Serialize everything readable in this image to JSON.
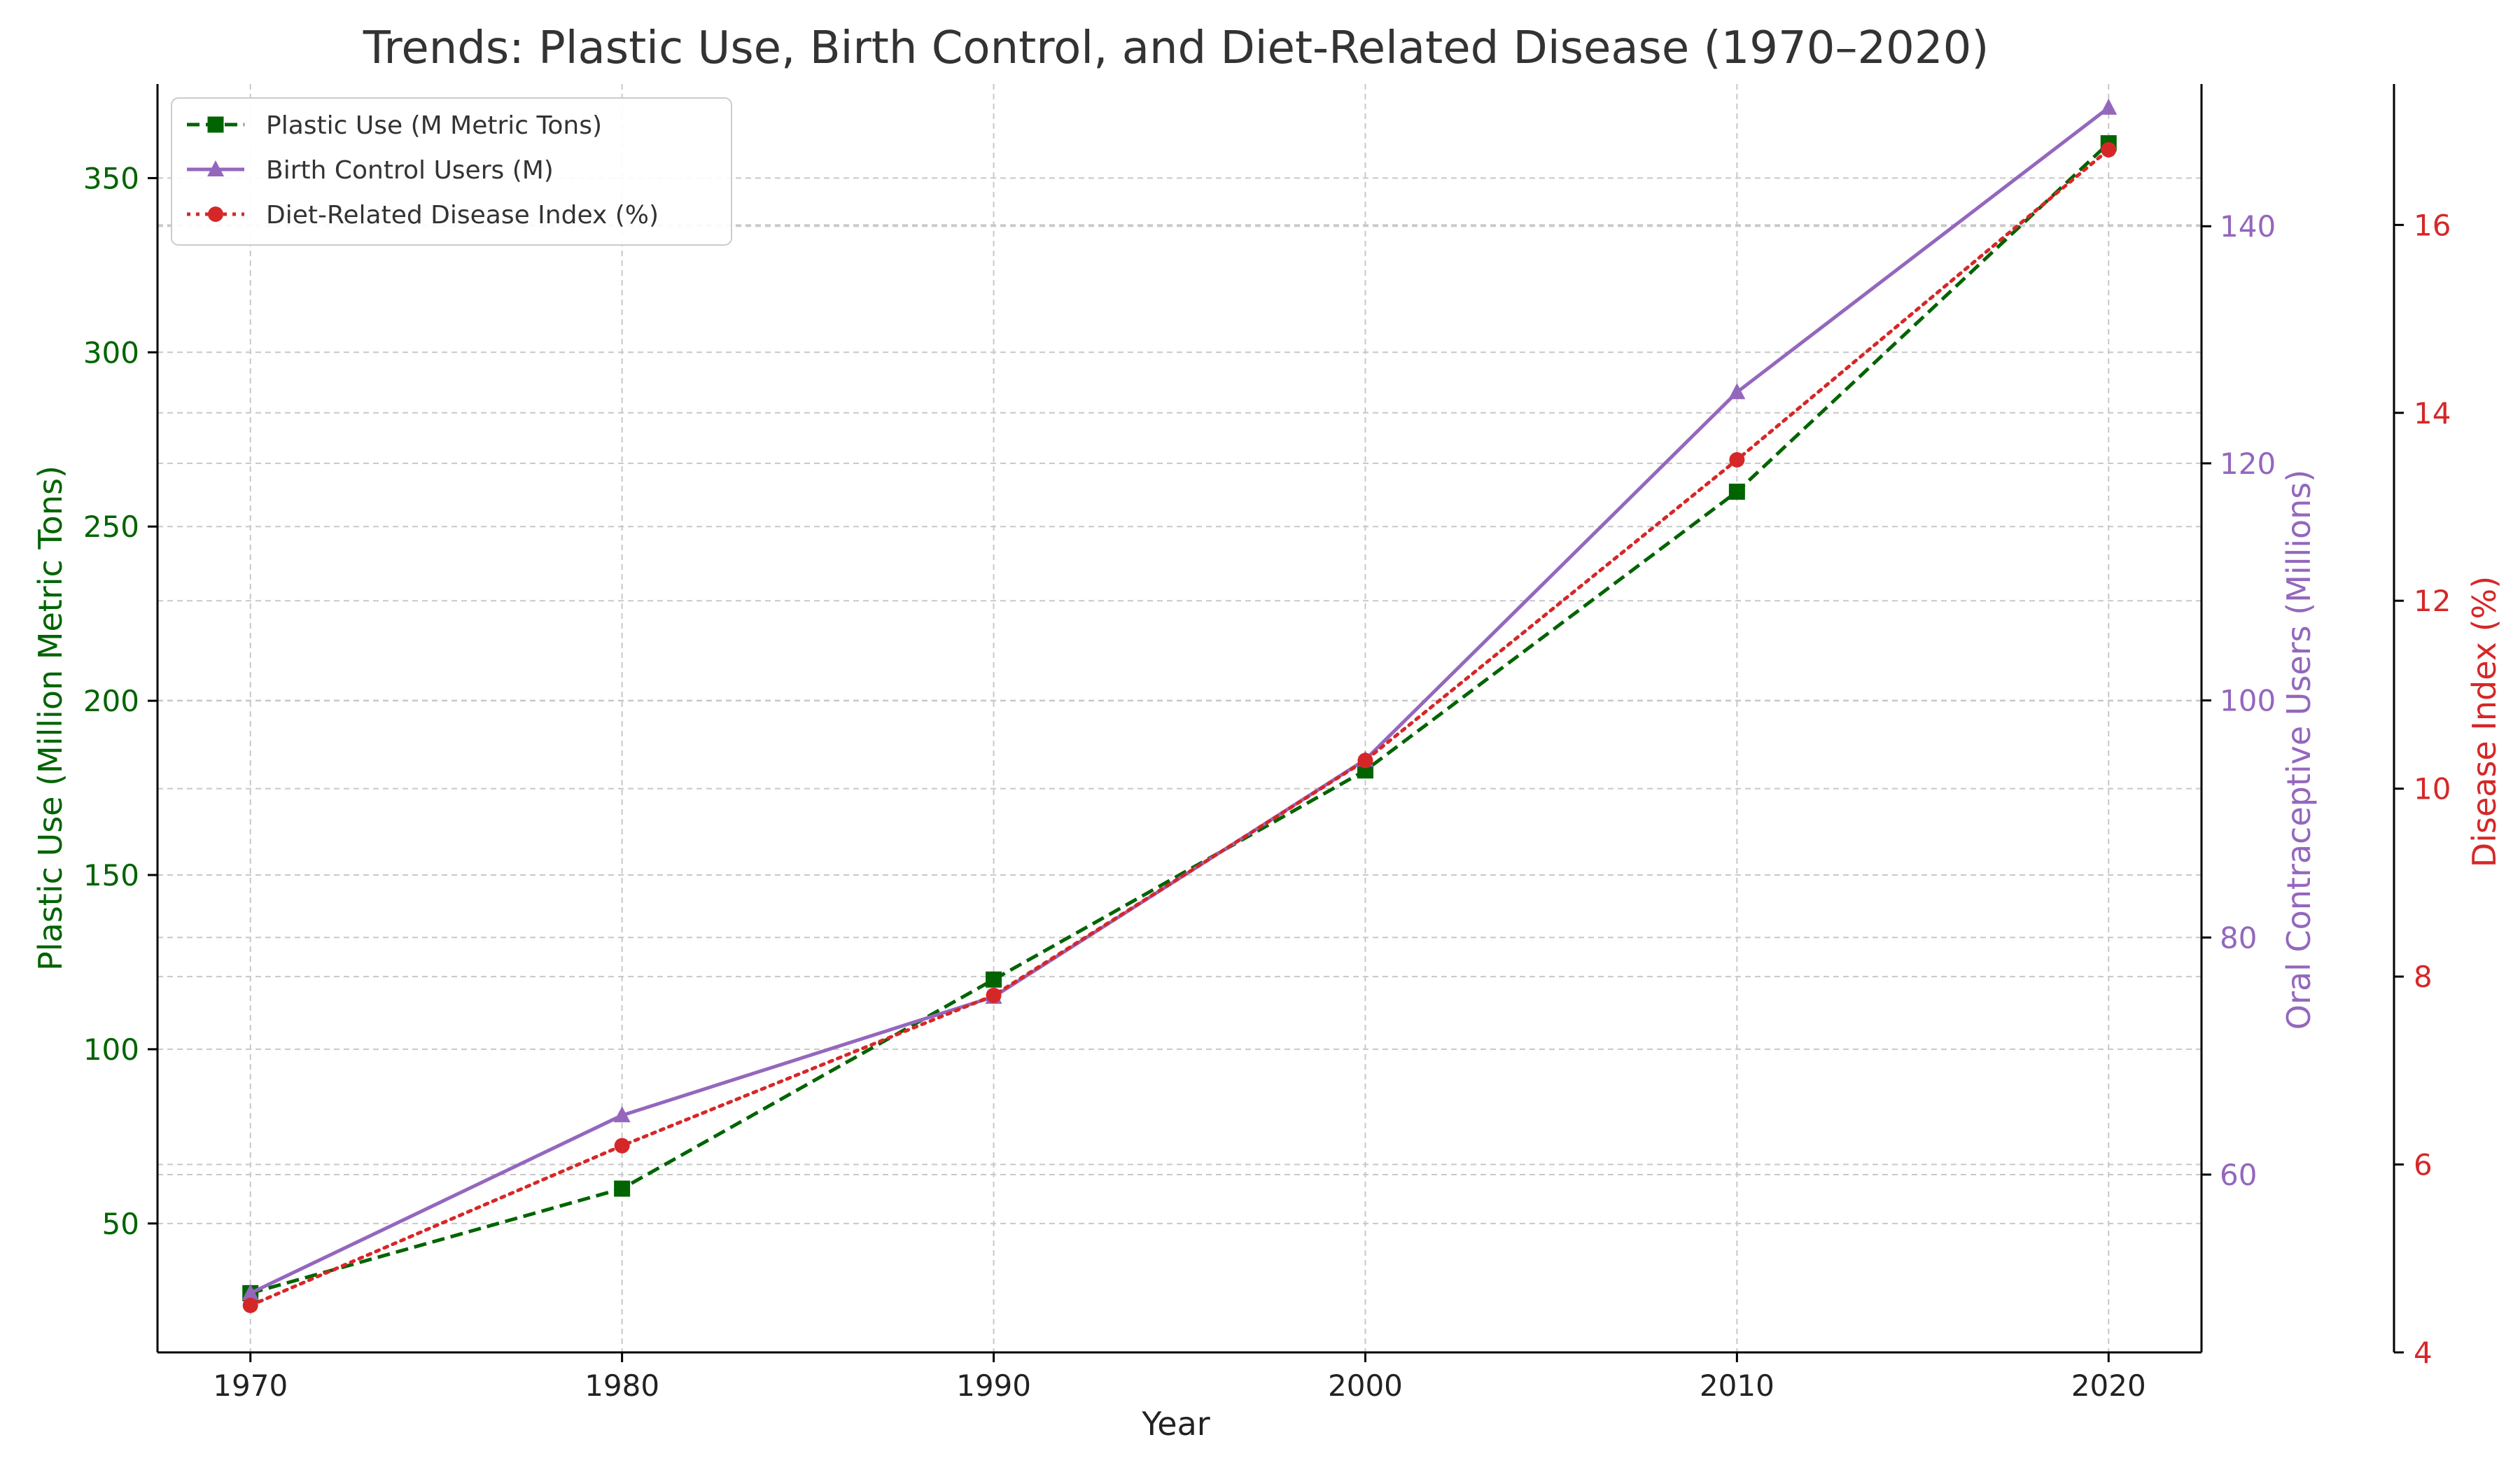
{
  "chart_data": {
    "type": "line",
    "title": "Trends: Plastic Use, Birth Control, and Diet-Related Disease (1970–2020)",
    "xlabel": "Year",
    "x": [
      1970,
      1980,
      1990,
      2000,
      2010,
      2020
    ],
    "xlim": [
      1967.5,
      2022.5
    ],
    "xticks": [
      1970,
      1980,
      1990,
      2000,
      2010,
      2020
    ],
    "grid": true,
    "legend_position": "top-left",
    "axes": {
      "left": {
        "label": "Plastic Use (Million Metric Tons)",
        "color": "#006400",
        "ylim": [
          13,
          377
        ],
        "ticks": [
          50,
          100,
          150,
          200,
          250,
          300,
          350
        ]
      },
      "right1": {
        "label": "Oral Contraceptive Users (Millions)",
        "color": "#9467bd",
        "ylim": [
          45,
          152
        ],
        "ticks": [
          60,
          80,
          100,
          120,
          140
        ]
      },
      "right2": {
        "label": "Disease Index (%)",
        "color": "#d62728",
        "ylim": [
          4,
          17.5
        ],
        "ticks": [
          4,
          6,
          8,
          10,
          12,
          14,
          16
        ]
      }
    },
    "series": [
      {
        "name": "Plastic Use (M Metric Tons)",
        "axis": "left",
        "color": "#006400",
        "marker": "square",
        "linestyle": "dashed",
        "values": [
          30,
          60,
          120,
          180,
          260,
          360
        ]
      },
      {
        "name": "Birth Control Users (M)",
        "axis": "right1",
        "color": "#9467bd",
        "marker": "triangle",
        "linestyle": "solid",
        "values": [
          50,
          65,
          75,
          95,
          126,
          150
        ]
      },
      {
        "name": "Diet-Related Disease Index (%)",
        "axis": "right2",
        "color": "#d62728",
        "marker": "circle",
        "linestyle": "dotted",
        "values": [
          4.5,
          6.2,
          7.8,
          10.3,
          13.5,
          16.8
        ]
      }
    ]
  }
}
